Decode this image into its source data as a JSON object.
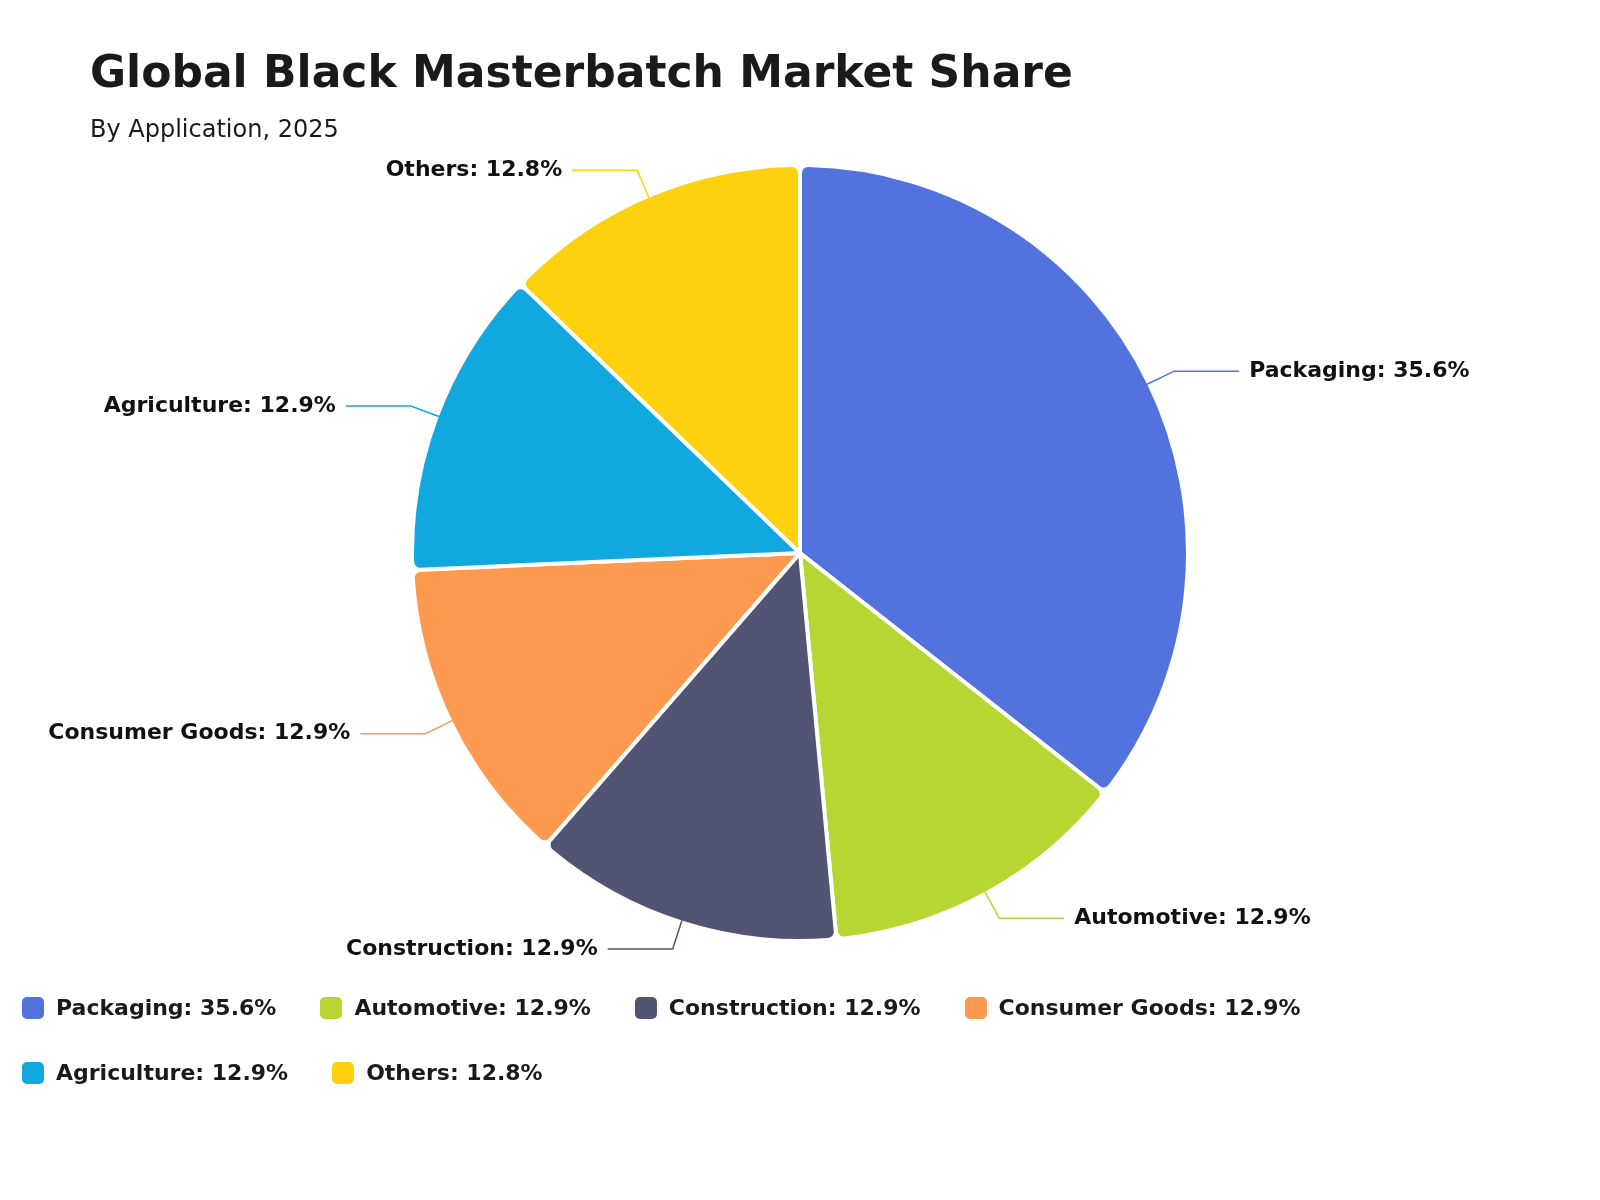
{
  "chart_data": {
    "type": "pie",
    "title": "Global Black Masterbatch Market Share",
    "subtitle": "By Application, 2025",
    "categories": [
      "Packaging: 35.6%",
      "Automotive: 12.9%",
      "Construction: 12.9%",
      "Consumer Goods: 12.9%",
      "Agriculture: 12.9%",
      "Others: 12.8%"
    ],
    "values": [
      35.6,
      12.9,
      12.9,
      12.9,
      12.9,
      12.8
    ],
    "colors": [
      "#5272de",
      "#b6d732",
      "#525473",
      "#fe9a4f",
      "#10a8de",
      "#fdd10d"
    ],
    "legend": "bottom"
  }
}
